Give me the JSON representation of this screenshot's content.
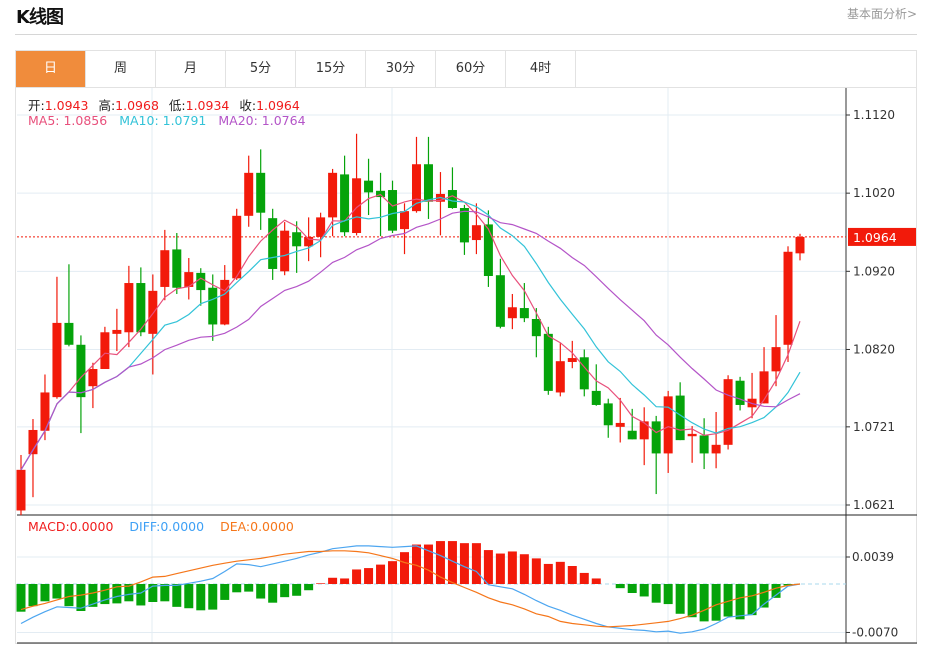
{
  "header": {
    "title": "K线图",
    "fundamental_link": "基本面分析>"
  },
  "tabs": [
    {
      "label": "日",
      "active": true
    },
    {
      "label": "周"
    },
    {
      "label": "月"
    },
    {
      "label": "5分"
    },
    {
      "label": "15分"
    },
    {
      "label": "30分"
    },
    {
      "label": "60分"
    },
    {
      "label": "4时"
    }
  ],
  "ohlc_info": {
    "open_label": "开:",
    "open": "1.0943",
    "high_label": "高:",
    "high": "1.0968",
    "low_label": "低:",
    "low": "1.0934",
    "close_label": "收:",
    "close": "1.0964"
  },
  "ma_legend": {
    "ma5": "MA5: 1.0856",
    "ma10": "MA10: 1.0791",
    "ma20": "MA20: 1.0764"
  },
  "macd_legend": {
    "macd": "MACD:0.0000",
    "diff": "DIFF:0.0000",
    "dea": "DEA:0.0000"
  },
  "colors": {
    "up": "#f21a0a",
    "down": "#05a30a",
    "ma5": "#e8507c",
    "ma10": "#33c3d8",
    "ma20": "#b455c8",
    "diff": "#4da6f0",
    "dea": "#f5761a",
    "active_tab": "#f08c3c"
  },
  "chart_data": {
    "type": "candlestick",
    "last_price": "1.0964",
    "y_ticks": [
      "1.1120",
      "1.1020",
      "1.0920",
      "1.0820",
      "1.0721",
      "1.0621"
    ],
    "macd_ticks": [
      "0.0039",
      "-0.0070"
    ],
    "ylim": [
      1.0606,
      1.1155
    ],
    "macd_ylim": [
      -0.0078,
      0.0068
    ],
    "open": [
      1.0614,
      1.0686,
      1.0716,
      1.0759,
      1.0854,
      1.0826,
      1.0773,
      1.0795,
      1.084,
      1.0842,
      1.0905,
      1.084,
      1.09,
      1.0948,
      1.09,
      1.0918,
      1.0899,
      1.0852,
      1.0911,
      1.0991,
      1.1046,
      1.0988,
      1.092,
      1.097,
      1.0952,
      1.0964,
      1.0989,
      1.1044,
      1.0969,
      1.1036,
      1.1023,
      1.1024,
      1.0974,
      1.0997,
      1.1057,
      1.1009,
      1.1024,
      1.1001,
      1.096,
      1.098,
      1.0915,
      1.086,
      1.0873,
      1.0859,
      1.084,
      1.0765,
      1.0804,
      1.081,
      1.0767,
      1.0751,
      1.0721,
      1.0716,
      1.0705,
      1.0728,
      1.0687,
      1.0761,
      1.0709,
      1.071,
      1.0687,
      1.0698,
      1.078,
      1.0746,
      1.0751,
      1.0792,
      1.0826,
      1.0943
    ],
    "high": [
      1.0685,
      1.0731,
      1.0788,
      1.0913,
      1.0929,
      1.0838,
      1.0803,
      1.0849,
      1.0872,
      1.0927,
      1.0925,
      1.0916,
      1.0973,
      1.0969,
      1.0937,
      1.0924,
      1.0916,
      1.0928,
      1.1,
      1.1068,
      1.1076,
      1.1,
      1.0983,
      1.0984,
      1.0989,
      1.0995,
      1.1051,
      1.1068,
      1.1096,
      1.1064,
      1.1046,
      1.1036,
      1.1007,
      1.1092,
      1.1092,
      1.1047,
      1.1053,
      1.1005,
      1.1007,
      1.0998,
      1.0936,
      1.0891,
      1.0905,
      1.0873,
      1.0849,
      1.0828,
      1.0831,
      1.082,
      1.0801,
      1.0757,
      1.0758,
      1.0744,
      1.0746,
      1.0735,
      1.0767,
      1.0778,
      1.0722,
      1.0732,
      1.074,
      1.0787,
      1.0785,
      1.079,
      1.0823,
      1.0864,
      1.0952,
      1.0968
    ],
    "low": [
      1.0608,
      1.0631,
      1.0704,
      1.0757,
      1.0824,
      1.0713,
      1.0745,
      1.0795,
      1.0818,
      1.0823,
      1.0837,
      1.0788,
      1.0883,
      1.0891,
      1.0884,
      1.0876,
      1.0831,
      1.0851,
      1.0909,
      1.0977,
      1.0973,
      1.0909,
      1.0915,
      1.0918,
      1.0933,
      1.0938,
      1.0965,
      1.0965,
      1.0966,
      1.0992,
      1.0965,
      1.0969,
      1.0942,
      1.0995,
      1.0987,
      1.0966,
      1.1,
      1.0941,
      1.0942,
      1.09,
      1.0847,
      1.0846,
      1.0855,
      1.081,
      1.0762,
      1.076,
      1.0796,
      1.076,
      1.0748,
      1.0707,
      1.0701,
      1.0705,
      1.0672,
      1.0635,
      1.0662,
      1.0704,
      1.0675,
      1.0667,
      1.0668,
      1.0692,
      1.0742,
      1.0732,
      1.0751,
      1.0773,
      1.0804,
      1.0934
    ],
    "close": [
      1.0666,
      1.0717,
      1.0765,
      1.0854,
      1.0826,
      1.0759,
      1.0795,
      1.0842,
      1.0845,
      1.0905,
      1.0842,
      1.0895,
      1.0947,
      1.0899,
      1.0919,
      1.0896,
      1.0852,
      1.0909,
      1.0991,
      1.1046,
      1.0995,
      1.0923,
      1.0972,
      1.0952,
      1.0964,
      1.0989,
      1.1046,
      1.097,
      1.1039,
      1.1021,
      1.1015,
      1.0972,
      1.0997,
      1.1057,
      1.1009,
      1.1019,
      1.1001,
      1.0957,
      1.0979,
      1.0914,
      1.0849,
      1.0874,
      1.086,
      1.0837,
      1.0767,
      1.0805,
      1.0809,
      1.0769,
      1.0749,
      1.0723,
      1.0726,
      1.0705,
      1.0728,
      1.0687,
      1.076,
      1.0704,
      1.0712,
      1.0687,
      1.0698,
      1.0782,
      1.0749,
      1.0757,
      1.0792,
      1.0823,
      1.0945,
      1.0964
    ],
    "macd": [
      -0.004,
      -0.0032,
      -0.0025,
      -0.0021,
      -0.0032,
      -0.0039,
      -0.0033,
      -0.0029,
      -0.0028,
      -0.0025,
      -0.0031,
      -0.0026,
      -0.0025,
      -0.0033,
      -0.0035,
      -0.0038,
      -0.0037,
      -0.0023,
      -0.0012,
      -0.0011,
      -0.0021,
      -0.0027,
      -0.0019,
      -0.0017,
      -0.0009,
      0.0001,
      0.0009,
      0.0008,
      0.0021,
      0.0023,
      0.0028,
      0.0033,
      0.0046,
      0.0057,
      0.0057,
      0.0062,
      0.0062,
      0.0059,
      0.0059,
      0.0049,
      0.0044,
      0.0047,
      0.0043,
      0.0037,
      0.0029,
      0.0032,
      0.0026,
      0.0016,
      0.0008,
      0.0,
      -0.0006,
      -0.0013,
      -0.0018,
      -0.0027,
      -0.0029,
      -0.0043,
      -0.0048,
      -0.0054,
      -0.0053,
      -0.0047,
      -0.0051,
      -0.0045,
      -0.0034,
      -0.002,
      -0.0002,
      0.0
    ],
    "diff": [
      -0.0057,
      -0.0048,
      -0.004,
      -0.0033,
      -0.0034,
      -0.0035,
      -0.0029,
      -0.0023,
      -0.0018,
      -0.0015,
      -0.0013,
      -0.0003,
      -0.0002,
      -0.0002,
      0.0001,
      0.0004,
      0.0008,
      0.0018,
      0.0029,
      0.0028,
      0.0025,
      0.0029,
      0.0033,
      0.0037,
      0.0042,
      0.0046,
      0.0051,
      0.0053,
      0.0055,
      0.0055,
      0.0054,
      0.0053,
      0.0054,
      0.0055,
      0.0048,
      0.0041,
      0.0033,
      0.0025,
      0.0018,
      -0.0001,
      -0.0004,
      -0.0007,
      -0.0015,
      -0.0024,
      -0.0032,
      -0.0038,
      -0.0045,
      -0.0051,
      -0.0057,
      -0.0062,
      -0.0064,
      -0.0066,
      -0.0067,
      -0.0069,
      -0.0068,
      -0.0071,
      -0.0069,
      -0.0065,
      -0.0057,
      -0.0048,
      -0.0046,
      -0.0044,
      -0.0029,
      -0.0016,
      -0.0003,
      0.0
    ],
    "dea": [
      -0.0037,
      -0.0032,
      -0.0028,
      -0.0023,
      -0.0018,
      -0.0016,
      -0.0013,
      -0.0009,
      -0.0004,
      -0.0003,
      0.0003,
      0.001,
      0.0011,
      0.0015,
      0.0019,
      0.0023,
      0.0027,
      0.003,
      0.0033,
      0.0035,
      0.0037,
      0.004,
      0.0043,
      0.0045,
      0.0047,
      0.0047,
      0.0048,
      0.0048,
      0.0047,
      0.0045,
      0.0041,
      0.0037,
      0.0031,
      0.0027,
      0.002,
      0.001,
      0.0002,
      -0.0005,
      -0.0012,
      -0.002,
      -0.0026,
      -0.003,
      -0.0036,
      -0.0043,
      -0.0047,
      -0.0054,
      -0.0057,
      -0.0059,
      -0.0061,
      -0.0062,
      -0.0061,
      -0.006,
      -0.0058,
      -0.0056,
      -0.0054,
      -0.005,
      -0.0045,
      -0.0038,
      -0.003,
      -0.0025,
      -0.002,
      -0.0017,
      -0.0012,
      -0.0006,
      -0.0002,
      0.0
    ]
  }
}
